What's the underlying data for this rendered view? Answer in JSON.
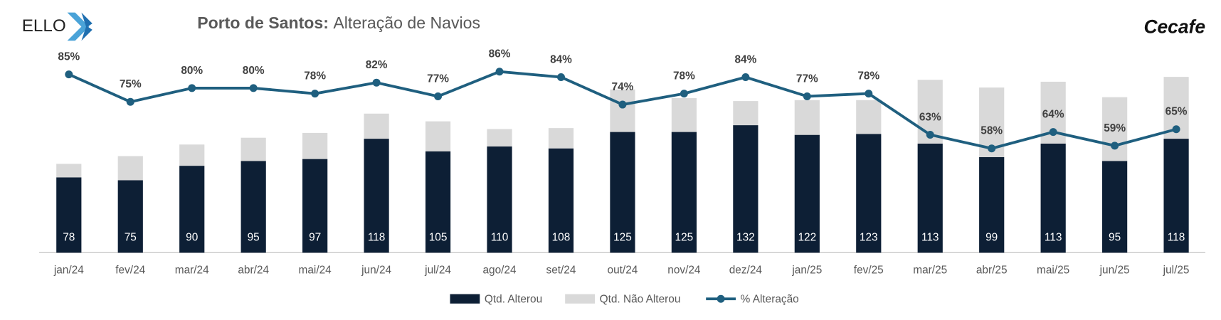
{
  "logos": [
    "ELLO",
    "Cecafe"
  ],
  "chart_data": {
    "type": "bar",
    "title": [
      "Porto de Santos:",
      "Alteração de Navios"
    ],
    "categories": [
      "jan/24",
      "fev/24",
      "mar/24",
      "abr/24",
      "mai/24",
      "jun/24",
      "jul/24",
      "ago/24",
      "set/24",
      "out/24",
      "nov/24",
      "dez/24",
      "jan/25",
      "fev/25",
      "mar/25",
      "abr/25",
      "mai/25",
      "jun/25",
      "jul/25"
    ],
    "series": [
      {
        "name": "Qtd. Alterou",
        "type": "bar",
        "color": "#0d1f35",
        "values": [
          78,
          75,
          90,
          95,
          97,
          118,
          105,
          110,
          108,
          125,
          125,
          132,
          122,
          123,
          113,
          99,
          113,
          95,
          118
        ]
      },
      {
        "name": "Qtd. Não Alterou",
        "type": "bar",
        "color": "#d9d9d9",
        "values": [
          14,
          25,
          22,
          24,
          27,
          26,
          31,
          18,
          21,
          44,
          35,
          25,
          36,
          35,
          66,
          72,
          64,
          66,
          64
        ]
      },
      {
        "name": "% Alteração",
        "type": "line",
        "axis": "y2",
        "color": "#1f5f7f",
        "values": [
          85,
          75,
          80,
          80,
          78,
          82,
          77,
          86,
          84,
          74,
          78,
          84,
          77,
          78,
          63,
          58,
          64,
          59,
          65
        ],
        "value_labels": [
          "85%",
          "75%",
          "80%",
          "80%",
          "78%",
          "82%",
          "77%",
          "86%",
          "84%",
          "74%",
          "78%",
          "84%",
          "77%",
          "78%",
          "63%",
          "58%",
          "64%",
          "59%",
          "65%"
        ]
      }
    ],
    "ylim": [
      0,
      213
    ],
    "y2lim": [
      20,
      95
    ],
    "legend": "bottom"
  }
}
